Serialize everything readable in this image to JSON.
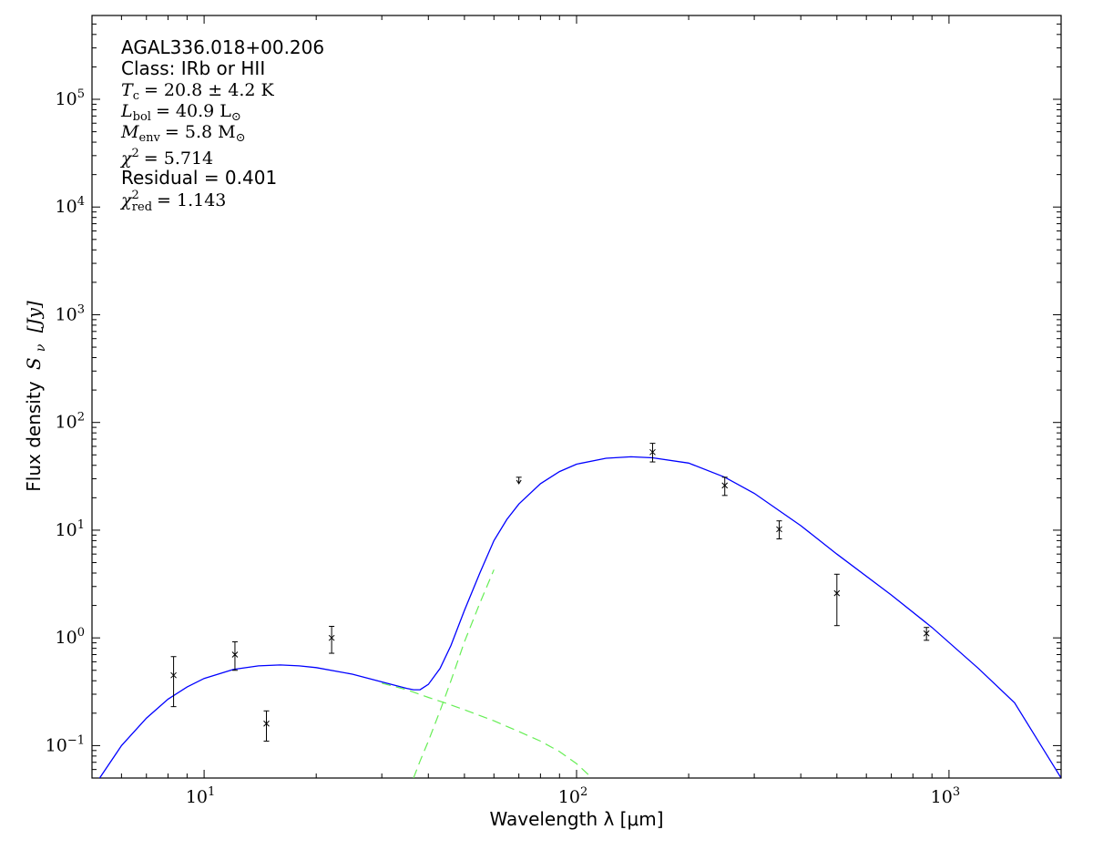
{
  "chart_data": {
    "type": "scatter",
    "title": "",
    "xlabel": "Wavelength λ [μm]",
    "ylabel_prefix": "Flux density",
    "ylabel_math": "S",
    "ylabel_sub": "ν",
    "ylabel_unit": "[Jy]",
    "xscale": "log",
    "yscale": "log",
    "xlim": [
      5,
      2000
    ],
    "ylim": [
      0.05,
      600000
    ],
    "grid": false,
    "x_ticks": [
      {
        "value": 10,
        "base": "10",
        "exp": "1"
      },
      {
        "value": 100,
        "base": "10",
        "exp": "2"
      },
      {
        "value": 1000,
        "base": "10",
        "exp": "3"
      }
    ],
    "y_ticks": [
      {
        "value": 0.1,
        "base": "10",
        "exp": "−1"
      },
      {
        "value": 1,
        "base": "10",
        "exp": "0"
      },
      {
        "value": 10,
        "base": "10",
        "exp": "1"
      },
      {
        "value": 100,
        "base": "10",
        "exp": "2"
      },
      {
        "value": 1000,
        "base": "10",
        "exp": "3"
      },
      {
        "value": 10000,
        "base": "10",
        "exp": "4"
      },
      {
        "value": 100000,
        "base": "10",
        "exp": "5"
      }
    ],
    "annotations": {
      "source": "AGAL336.018+00.206",
      "class_text": "Class: IRb or HII",
      "tc_value": "= 20.8 ± 4.2 K",
      "lbol_value": "= 40.9 L",
      "menv_value": "= 5.8 M",
      "chi2_value": "= 5.714",
      "residual_text": "Residual = 0.401",
      "chi2red_value": "= 1.143"
    },
    "points": [
      {
        "x": 8.28,
        "y": 0.45,
        "ylo": 0.23,
        "yhi": 0.67,
        "upper_limit": false
      },
      {
        "x": 12.1,
        "y": 0.7,
        "ylo": 0.5,
        "yhi": 0.92,
        "upper_limit": false
      },
      {
        "x": 14.7,
        "y": 0.16,
        "ylo": 0.11,
        "yhi": 0.21,
        "upper_limit": false
      },
      {
        "x": 22.0,
        "y": 1.0,
        "ylo": 0.72,
        "yhi": 1.28,
        "upper_limit": false
      },
      {
        "x": 70.0,
        "y": 31.0,
        "ylo": 27.0,
        "yhi": 31.0,
        "upper_limit": true
      },
      {
        "x": 160.0,
        "y": 53.0,
        "ylo": 43.0,
        "yhi": 64.0,
        "upper_limit": false
      },
      {
        "x": 250.0,
        "y": 26.0,
        "ylo": 21.0,
        "yhi": 31.0,
        "upper_limit": false
      },
      {
        "x": 350.0,
        "y": 10.2,
        "ylo": 8.3,
        "yhi": 12.2,
        "upper_limit": false
      },
      {
        "x": 500.0,
        "y": 2.6,
        "ylo": 1.3,
        "yhi": 3.9,
        "upper_limit": false
      },
      {
        "x": 870.0,
        "y": 1.1,
        "ylo": 0.95,
        "yhi": 1.25,
        "upper_limit": false
      }
    ],
    "series": [
      {
        "style": "solid",
        "color": "#0000ff",
        "x": [
          5.2,
          6,
          7,
          8,
          9,
          10,
          12,
          14,
          16,
          18,
          20,
          25,
          30,
          35,
          36.5,
          38,
          40,
          43,
          46,
          50,
          55,
          60,
          65,
          70,
          80,
          90,
          100,
          120,
          140,
          160,
          200,
          250,
          300,
          400,
          500,
          700,
          900,
          1200,
          1500,
          2000
        ],
        "y": [
          0.048,
          0.1,
          0.18,
          0.27,
          0.35,
          0.42,
          0.51,
          0.55,
          0.56,
          0.55,
          0.53,
          0.46,
          0.39,
          0.34,
          0.33,
          0.33,
          0.37,
          0.52,
          0.85,
          1.8,
          4.0,
          8.0,
          12.6,
          17.5,
          27.0,
          35.0,
          41.0,
          46.5,
          48.0,
          47.0,
          42.0,
          31.0,
          22.0,
          11.0,
          6.0,
          2.5,
          1.25,
          0.52,
          0.25,
          0.05
        ]
      },
      {
        "style": "dashed",
        "color": "#66ee55",
        "x": [
          30,
          35,
          40,
          45,
          50,
          60,
          70,
          80,
          90,
          100,
          110
        ],
        "y": [
          0.38,
          0.33,
          0.28,
          0.245,
          0.215,
          0.17,
          0.135,
          0.11,
          0.088,
          0.068,
          0.05
        ]
      },
      {
        "style": "dashed",
        "color": "#66ee55",
        "x": [
          36.5,
          38,
          40,
          43,
          46,
          50,
          55,
          60
        ],
        "y": [
          0.05,
          0.072,
          0.11,
          0.21,
          0.4,
          0.92,
          2.1,
          4.3
        ]
      }
    ],
    "colors": {
      "axis": "#000000",
      "model": "#0000ff",
      "component": "#66ee55",
      "points": "#000000"
    }
  }
}
